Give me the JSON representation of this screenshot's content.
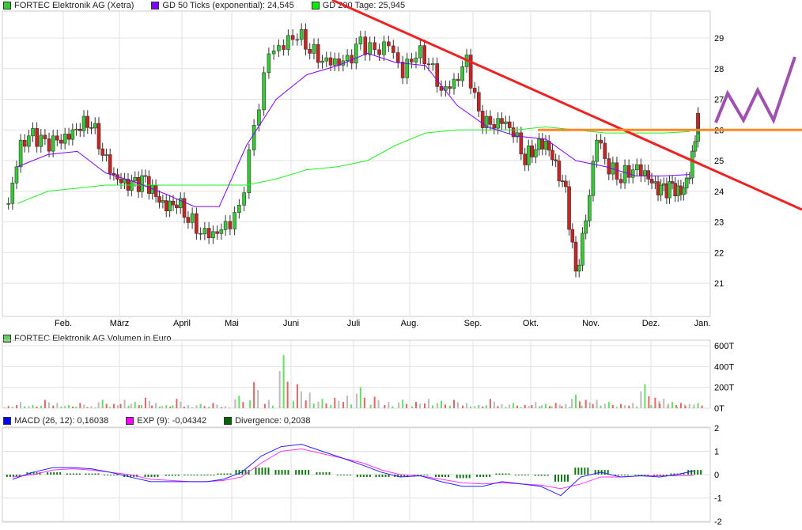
{
  "legend_price": [
    {
      "label": "FORTEC Elektronik AG (Xetra)",
      "color": "#33cc33"
    },
    {
      "label": "GD 50 Ticks (exponential): 24,545",
      "color": "#7f00ff"
    },
    {
      "label": "GD 200 Tage: 25,945",
      "color": "#00ee00"
    }
  ],
  "legend_volume": [
    {
      "label": "FORTEC Elektronik AG Volumen in Euro",
      "color": "#66cc66"
    }
  ],
  "legend_macd": [
    {
      "label": "MACD (26, 12): 0,16038",
      "color": "#0000ff"
    },
    {
      "label": "EXP (9): -0,04342",
      "color": "#ff00ff"
    },
    {
      "label": "Divergence: 0,2038",
      "color": "#006600"
    }
  ],
  "chart_data": [
    {
      "type": "candlestick",
      "ylim": [
        20,
        30
      ],
      "y_ticks": [
        "21",
        "22",
        "23",
        "24",
        "25",
        "26",
        "27",
        "28",
        "29"
      ],
      "x_ticks": [
        "Feb.",
        "März",
        "April",
        "Mai",
        "Juni",
        "Juli",
        "Aug.",
        "Sep.",
        "Okt.",
        "Nov.",
        "Dez.",
        "Jan."
      ],
      "closes_by_month": [
        {
          "month": "Jan",
          "closes": [
            23.6,
            25.5,
            25.8,
            25.5,
            25.6
          ]
        },
        {
          "month": "Feb.",
          "closes": [
            25.8,
            26.2,
            26.3,
            25.3,
            24.5
          ]
        },
        {
          "month": "März",
          "closes": [
            24.2,
            24.2,
            24.3,
            23.8,
            23.5,
            23.7
          ]
        },
        {
          "month": "April",
          "closes": [
            23.2,
            22.7,
            22.6,
            22.8
          ]
        },
        {
          "month": "Mai",
          "closes": [
            23.3,
            26.0,
            28.5,
            28.8
          ]
        },
        {
          "month": "Juni",
          "closes": [
            29.2,
            28.7,
            28.3,
            28.2,
            28.2
          ]
        },
        {
          "month": "Juli",
          "closes": [
            28.8,
            28.5,
            28.8,
            27.9
          ]
        },
        {
          "month": "Aug.",
          "closes": [
            28.6,
            28.3,
            27.3,
            27.5,
            28.2
          ]
        },
        {
          "month": "Sep.",
          "closes": [
            26.4,
            26.1,
            26.3,
            26.0,
            25.1
          ]
        },
        {
          "month": "Okt.",
          "closes": [
            25.5,
            25.6,
            24.8,
            23.9,
            21.2,
            23.0
          ]
        },
        {
          "month": "Nov.",
          "closes": [
            25.8,
            24.8,
            24.5,
            24.8,
            24.6
          ]
        },
        {
          "month": "Dez.",
          "closes": [
            24.1,
            24.0,
            24.1,
            23.9,
            24.6,
            26.3
          ]
        }
      ],
      "gd50_by_month": [
        [
          24.8,
          25.2
        ],
        [
          25.3,
          24.6
        ],
        [
          24.3,
          23.9
        ],
        [
          23.5,
          23.5
        ],
        [
          25.5,
          27.0
        ],
        [
          27.8,
          28.1
        ],
        [
          28.5,
          28.2
        ],
        [
          28.1,
          26.8
        ],
        [
          26.1,
          25.8
        ],
        [
          25.7,
          25.0
        ],
        [
          24.8,
          24.5
        ],
        [
          24.5,
          24.545
        ]
      ],
      "gd200_by_month": [
        [
          23.6,
          24.0
        ],
        [
          24.1,
          24.2
        ],
        [
          24.2,
          24.2
        ],
        [
          24.2,
          24.2
        ],
        [
          24.2,
          24.4
        ],
        [
          24.7,
          24.8
        ],
        [
          25.0,
          25.5
        ],
        [
          25.9,
          26.0
        ],
        [
          26.0,
          26.0
        ],
        [
          26.1,
          26.0
        ],
        [
          25.9,
          25.9
        ],
        [
          25.9,
          25.945
        ]
      ],
      "trendlines": [
        {
          "type": "falling-resistance",
          "color": "#ee2222"
        },
        {
          "type": "horizontal",
          "value": 26.0,
          "color": "#ff8822"
        }
      ]
    },
    {
      "type": "bar",
      "title": "FORTEC Elektronik AG Volumen in Euro",
      "y_ticks": [
        "0T",
        "200T",
        "400T",
        "600T"
      ],
      "ylim": [
        0,
        600
      ],
      "volume_by_month": [
        [
          20,
          60,
          30,
          80,
          50
        ],
        [
          30,
          50,
          20,
          80,
          40
        ],
        [
          80,
          60,
          100,
          50,
          30,
          90
        ],
        [
          30,
          40,
          50,
          20
        ],
        [
          120,
          250,
          80,
          510
        ],
        [
          230,
          150,
          90,
          100,
          120
        ],
        [
          200,
          110,
          60,
          80
        ],
        [
          60,
          90,
          70,
          80,
          50
        ],
        [
          30,
          90,
          40,
          50,
          30
        ],
        [
          60,
          40,
          50,
          40,
          130,
          80
        ],
        [
          80,
          60,
          40,
          50,
          230
        ],
        [
          100,
          90,
          60,
          50,
          40,
          50
        ]
      ]
    },
    {
      "type": "line",
      "y_ticks": [
        "2",
        "1",
        "0",
        "-1",
        "-2"
      ],
      "ylim": [
        -2,
        2
      ],
      "macd_by_month": [
        [
          -0.2,
          0.1,
          0.3
        ],
        [
          0.3,
          0.25,
          0.1
        ],
        [
          -0.1,
          -0.3,
          -0.3
        ],
        [
          -0.3,
          -0.3,
          -0.2
        ],
        [
          0.1,
          0.8,
          1.2
        ],
        [
          1.3,
          1.0,
          0.7
        ],
        [
          0.4,
          0.1,
          -0.1
        ],
        [
          -0.05,
          -0.3,
          -0.5
        ],
        [
          -0.5,
          -0.3,
          -0.4
        ],
        [
          -0.5,
          -0.9,
          -0.1
        ],
        [
          0.1,
          -0.1,
          -0.05
        ],
        [
          -0.1,
          0.0,
          0.16
        ]
      ],
      "exp_by_month": [
        [
          -0.1,
          0.0,
          0.2
        ],
        [
          0.25,
          0.2,
          0.1
        ],
        [
          0.0,
          -0.2,
          -0.25
        ],
        [
          -0.3,
          -0.3,
          -0.25
        ],
        [
          -0.1,
          0.5,
          1.0
        ],
        [
          1.1,
          0.9,
          0.7
        ],
        [
          0.5,
          0.2,
          0.0
        ],
        [
          -0.05,
          -0.2,
          -0.35
        ],
        [
          -0.4,
          -0.35,
          -0.4
        ],
        [
          -0.45,
          -0.6,
          -0.4
        ],
        [
          -0.1,
          -0.1,
          -0.05
        ],
        [
          -0.05,
          -0.05,
          -0.04
        ]
      ]
    }
  ]
}
